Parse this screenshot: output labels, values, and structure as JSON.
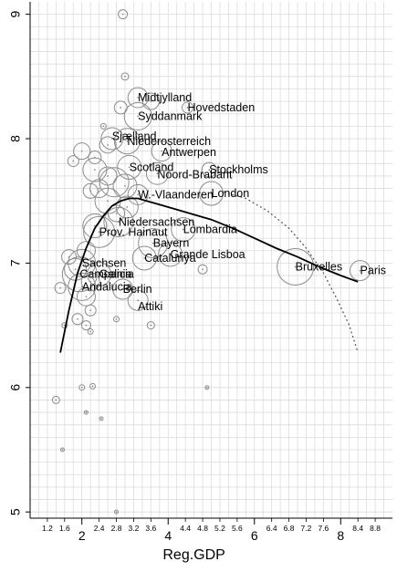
{
  "chart_data": {
    "type": "scatter",
    "xlabel": "Reg.GDP",
    "ylabel": "",
    "xlim": [
      0.8,
      9.2
    ],
    "ylim": [
      4.95,
      9.1
    ],
    "x_major_ticks": [
      2,
      4,
      6,
      8
    ],
    "x_minor_ticks": [
      "1.2",
      "1.6",
      "2.4",
      "2.8",
      "3.2",
      "3.6",
      "4.4",
      "4.8",
      "5.2",
      "5.6",
      "6.4",
      "6.8",
      "7.2",
      "7.6",
      "8.4",
      "8.8"
    ],
    "y_ticks": [
      5,
      6,
      7,
      8,
      9
    ],
    "grid": true,
    "labeled_points": [
      {
        "label": "Midtjylland",
        "x": 3.3,
        "y": 8.33
      },
      {
        "label": "Hovedstaden",
        "x": 4.45,
        "y": 8.25
      },
      {
        "label": "Syddanmark",
        "x": 3.3,
        "y": 8.18
      },
      {
        "label": "Sjælland",
        "x": 2.7,
        "y": 8.02
      },
      {
        "label": "Niederosterreich",
        "x": 3.05,
        "y": 7.98
      },
      {
        "label": "Antwerpen",
        "x": 3.85,
        "y": 7.89
      },
      {
        "label": "Scotland",
        "x": 3.1,
        "y": 7.77
      },
      {
        "label": "Stockholms",
        "x": 4.95,
        "y": 7.75
      },
      {
        "label": "Noord-Brabant",
        "x": 3.75,
        "y": 7.71
      },
      {
        "label": "London",
        "x": 5.0,
        "y": 7.56
      },
      {
        "label": "W.-Vlaanderen",
        "x": 3.3,
        "y": 7.55
      },
      {
        "label": "Niedersachsen",
        "x": 2.85,
        "y": 7.33
      },
      {
        "label": "Lombardia",
        "x": 4.35,
        "y": 7.27
      },
      {
        "label": "Prov. Hainaut",
        "x": 2.4,
        "y": 7.25
      },
      {
        "label": "Bayern",
        "x": 3.65,
        "y": 7.16
      },
      {
        "label": "Grande Lisboa",
        "x": 4.05,
        "y": 7.07
      },
      {
        "label": "Catalunya",
        "x": 3.45,
        "y": 7.04
      },
      {
        "label": "Sachsen",
        "x": 2.0,
        "y": 7.0
      },
      {
        "label": "Campania",
        "x": 1.95,
        "y": 6.91
      },
      {
        "label": "Galicia",
        "x": 2.4,
        "y": 6.91
      },
      {
        "label": "Andalucia",
        "x": 2.0,
        "y": 6.81
      },
      {
        "label": "Berlin",
        "x": 2.95,
        "y": 6.79
      },
      {
        "label": "Attiki",
        "x": 3.3,
        "y": 6.65
      },
      {
        "label": "Bruxelles",
        "x": 6.95,
        "y": 6.97
      },
      {
        "label": "Paris",
        "x": 8.45,
        "y": 6.94
      }
    ],
    "bubbles": [
      {
        "x": 2.95,
        "y": 9.0,
        "r": 5
      },
      {
        "x": 3.0,
        "y": 8.5,
        "r": 4
      },
      {
        "x": 3.3,
        "y": 8.33,
        "r": 11
      },
      {
        "x": 3.6,
        "y": 8.3,
        "r": 9
      },
      {
        "x": 4.45,
        "y": 8.25,
        "r": 6
      },
      {
        "x": 3.3,
        "y": 8.18,
        "r": 15
      },
      {
        "x": 2.9,
        "y": 8.25,
        "r": 7
      },
      {
        "x": 2.5,
        "y": 8.1,
        "r": 3
      },
      {
        "x": 2.7,
        "y": 8.0,
        "r": 12
      },
      {
        "x": 3.05,
        "y": 7.98,
        "r": 14
      },
      {
        "x": 2.6,
        "y": 7.95,
        "r": 9
      },
      {
        "x": 3.85,
        "y": 7.9,
        "r": 11
      },
      {
        "x": 2.0,
        "y": 7.9,
        "r": 9
      },
      {
        "x": 2.3,
        "y": 7.85,
        "r": 7
      },
      {
        "x": 1.8,
        "y": 7.82,
        "r": 6
      },
      {
        "x": 3.1,
        "y": 7.77,
        "r": 13
      },
      {
        "x": 4.95,
        "y": 7.75,
        "r": 8
      },
      {
        "x": 2.3,
        "y": 7.75,
        "r": 13
      },
      {
        "x": 3.75,
        "y": 7.72,
        "r": 12
      },
      {
        "x": 2.6,
        "y": 7.7,
        "r": 10
      },
      {
        "x": 2.75,
        "y": 7.65,
        "r": 16
      },
      {
        "x": 3.0,
        "y": 7.62,
        "r": 13
      },
      {
        "x": 2.4,
        "y": 7.6,
        "r": 10
      },
      {
        "x": 5.0,
        "y": 7.56,
        "r": 13
      },
      {
        "x": 2.2,
        "y": 7.58,
        "r": 8
      },
      {
        "x": 3.3,
        "y": 7.55,
        "r": 11
      },
      {
        "x": 2.6,
        "y": 7.5,
        "r": 14
      },
      {
        "x": 3.05,
        "y": 7.45,
        "r": 12
      },
      {
        "x": 2.8,
        "y": 7.4,
        "r": 9
      },
      {
        "x": 2.85,
        "y": 7.33,
        "r": 16
      },
      {
        "x": 2.3,
        "y": 7.3,
        "r": 13
      },
      {
        "x": 4.35,
        "y": 7.27,
        "r": 13
      },
      {
        "x": 2.4,
        "y": 7.25,
        "r": 17
      },
      {
        "x": 3.65,
        "y": 7.16,
        "r": 16
      },
      {
        "x": 4.05,
        "y": 7.07,
        "r": 13
      },
      {
        "x": 2.1,
        "y": 7.1,
        "r": 10
      },
      {
        "x": 3.45,
        "y": 7.04,
        "r": 13
      },
      {
        "x": 1.7,
        "y": 7.05,
        "r": 8
      },
      {
        "x": 2.0,
        "y": 7.0,
        "r": 15
      },
      {
        "x": 1.85,
        "y": 6.95,
        "r": 12
      },
      {
        "x": 1.95,
        "y": 6.91,
        "r": 19
      },
      {
        "x": 2.4,
        "y": 6.91,
        "r": 13
      },
      {
        "x": 2.2,
        "y": 6.85,
        "r": 10
      },
      {
        "x": 2.0,
        "y": 6.81,
        "r": 15
      },
      {
        "x": 2.95,
        "y": 6.79,
        "r": 11
      },
      {
        "x": 1.5,
        "y": 6.8,
        "r": 6
      },
      {
        "x": 2.1,
        "y": 6.73,
        "r": 10
      },
      {
        "x": 3.3,
        "y": 6.7,
        "r": 11
      },
      {
        "x": 2.2,
        "y": 6.62,
        "r": 6
      },
      {
        "x": 1.9,
        "y": 6.55,
        "r": 6
      },
      {
        "x": 2.1,
        "y": 6.5,
        "r": 5
      },
      {
        "x": 1.6,
        "y": 6.5,
        "r": 3
      },
      {
        "x": 2.8,
        "y": 6.55,
        "r": 3
      },
      {
        "x": 3.6,
        "y": 6.5,
        "r": 4
      },
      {
        "x": 2.2,
        "y": 6.45,
        "r": 3
      },
      {
        "x": 6.95,
        "y": 6.97,
        "r": 20
      },
      {
        "x": 8.45,
        "y": 6.94,
        "r": 11
      },
      {
        "x": 4.8,
        "y": 6.95,
        "r": 5
      },
      {
        "x": 1.4,
        "y": 5.9,
        "r": 4
      },
      {
        "x": 2.0,
        "y": 6.0,
        "r": 3
      },
      {
        "x": 2.25,
        "y": 6.01,
        "r": 3
      },
      {
        "x": 4.9,
        "y": 6.0,
        "r": 2
      },
      {
        "x": 2.1,
        "y": 5.8,
        "r": 2
      },
      {
        "x": 2.45,
        "y": 5.75,
        "r": 2
      },
      {
        "x": 1.55,
        "y": 5.5,
        "r": 2
      },
      {
        "x": 2.8,
        "y": 5.0,
        "r": 2
      }
    ],
    "series": [
      {
        "style": "solid",
        "x": [
          1.5,
          1.7,
          1.9,
          2.1,
          2.3,
          2.5,
          2.7,
          2.9,
          3.1,
          3.3,
          3.5,
          3.8,
          4.1,
          4.5,
          5.0,
          5.5,
          6.0,
          6.5,
          7.0,
          7.5,
          8.0,
          8.4
        ],
        "y": [
          6.28,
          6.62,
          6.92,
          7.12,
          7.28,
          7.38,
          7.46,
          7.5,
          7.52,
          7.52,
          7.5,
          7.47,
          7.44,
          7.4,
          7.35,
          7.28,
          7.2,
          7.12,
          7.05,
          6.97,
          6.9,
          6.85
        ]
      },
      {
        "style": "dotted",
        "x": [
          5.3,
          5.8,
          6.3,
          6.8,
          7.2,
          7.6,
          7.9,
          8.2,
          8.4
        ],
        "y": [
          7.57,
          7.52,
          7.42,
          7.28,
          7.12,
          6.92,
          6.72,
          6.5,
          6.28
        ]
      }
    ]
  }
}
